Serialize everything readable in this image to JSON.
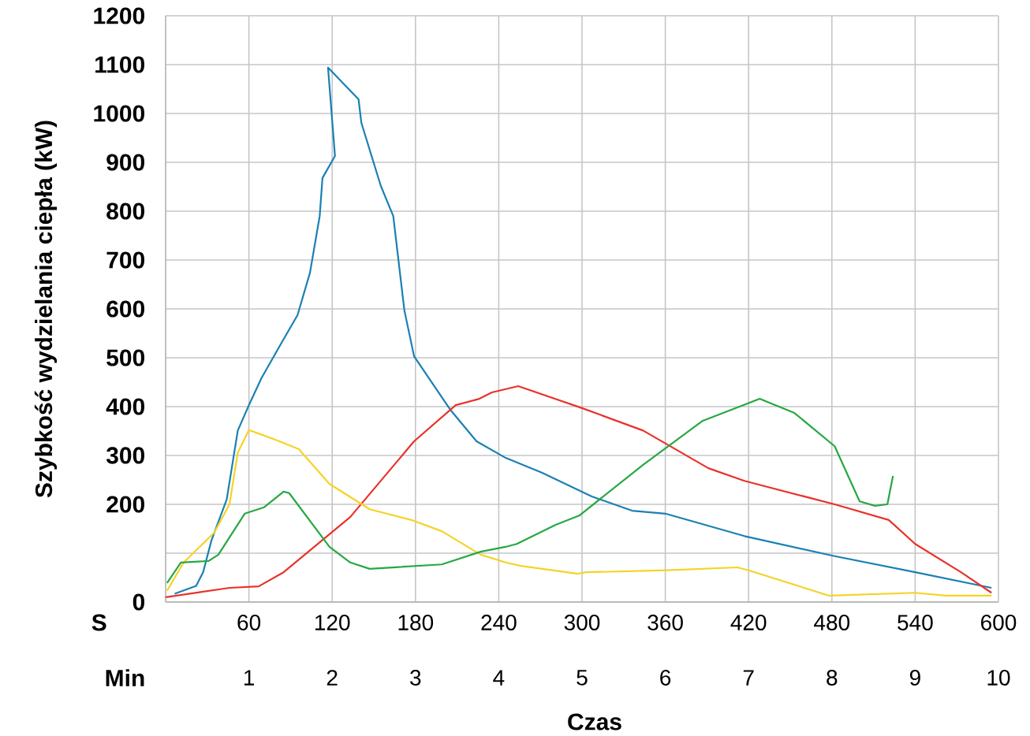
{
  "chart_data": {
    "type": "line",
    "ylabel": "Szybkość wydzielania ciepła (kW)",
    "xlabel": "Czas",
    "annotations": [
      "S",
      "Min"
    ],
    "xlim": [
      0,
      600
    ],
    "ylim": [
      0,
      1200
    ],
    "xticks": [
      60,
      120,
      180,
      240,
      300,
      360,
      420,
      480,
      540,
      600
    ],
    "x2lim": [
      0,
      10
    ],
    "x2ticks": [
      1,
      2,
      3,
      4,
      5,
      6,
      7,
      8,
      9,
      10
    ],
    "yticks": [
      0,
      {
        "value": 100,
        "label": null
      },
      200,
      300,
      400,
      500,
      600,
      700,
      800,
      900,
      1000,
      1100,
      1200
    ],
    "grid": true,
    "series": [
      {
        "color": "#1a80b4",
        "x": [
          6.5,
          22,
          27,
          33,
          44,
          52,
          60,
          69,
          84,
          95,
          104,
          111,
          113,
          122,
          117,
          139,
          141,
          155,
          164,
          172,
          179,
          205,
          224,
          245,
          271,
          307,
          336,
          360,
          417,
          482,
          540,
          595
        ],
        "values": [
          17,
          33,
          61,
          126,
          210,
          351,
          403,
          458,
          533,
          587,
          674,
          790,
          868,
          913,
          1094,
          1029,
          981,
          852,
          790,
          597,
          503,
          394,
          329,
          295,
          265,
          216,
          187,
          181,
          135,
          94,
          61,
          29
        ]
      },
      {
        "color": "#e8322b",
        "x": [
          0,
          46,
          67,
          85,
          133,
          179,
          209,
          226,
          235,
          254,
          300,
          344,
          391,
          417,
          482,
          521,
          540,
          573,
          595
        ],
        "values": [
          10,
          29,
          32,
          61,
          174,
          329,
          403,
          416,
          429,
          442,
          397,
          351,
          274,
          248,
          200,
          168,
          119,
          61,
          19
        ]
      },
      {
        "color": "#f5d327",
        "x": [
          1,
          13,
          35,
          46,
          52,
          60,
          67,
          82,
          96,
          118,
          147,
          177,
          199,
          227,
          245,
          256,
          297,
          303,
          362,
          412,
          420,
          478,
          540,
          562,
          595
        ],
        "values": [
          23,
          81,
          142,
          200,
          306,
          352,
          345,
          329,
          313,
          242,
          190,
          168,
          145,
          97,
          81,
          74,
          58,
          61,
          65,
          71,
          65,
          13,
          19,
          13,
          13
        ]
      },
      {
        "color": "#27a843",
        "x": [
          1,
          11,
          31,
          38,
          57,
          71,
          85,
          89,
          118,
          133,
          147,
          199,
          227,
          245,
          253,
          281,
          298,
          344,
          387,
          428,
          453,
          482,
          500,
          511,
          520,
          524
        ],
        "values": [
          39,
          81,
          84,
          97,
          181,
          194,
          226,
          223,
          113,
          81,
          68,
          77,
          103,
          113,
          119,
          158,
          177,
          281,
          371,
          416,
          387,
          319,
          206,
          197,
          200,
          258
        ]
      }
    ]
  }
}
